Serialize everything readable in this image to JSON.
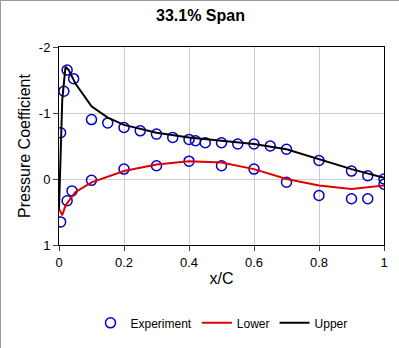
{
  "chart_data": {
    "type": "line",
    "title": "33.1% Span",
    "x_label": "x/C",
    "y_label": "Pressure Coefficient",
    "xlim": [
      0,
      1
    ],
    "xticks": [
      0,
      0.2,
      0.4,
      0.6,
      0.8,
      1
    ],
    "ylim": [
      1,
      -2
    ],
    "yticks": [
      -2,
      -1,
      0,
      1
    ],
    "grid": true,
    "legend": "bottom",
    "series": [
      {
        "name": "Experiment",
        "type": "scatter",
        "marker": "circle-open",
        "color": "#0000cc",
        "x": [
          0.005,
          0.005,
          0.015,
          0.025,
          0.045,
          0.1,
          0.15,
          0.2,
          0.25,
          0.3,
          0.35,
          0.4,
          0.42,
          0.45,
          0.5,
          0.55,
          0.6,
          0.65,
          0.7,
          0.8,
          0.9,
          0.95,
          1.0,
          0.025,
          0.04,
          0.1,
          0.2,
          0.3,
          0.4,
          0.5,
          0.6,
          0.7,
          0.8,
          0.9,
          0.95,
          1.0
        ],
        "values": [
          -0.7,
          0.65,
          -1.33,
          -1.65,
          -1.52,
          -0.9,
          -0.85,
          -0.78,
          -0.73,
          -0.68,
          -0.63,
          -0.6,
          -0.58,
          -0.55,
          -0.55,
          -0.53,
          -0.53,
          -0.5,
          -0.45,
          -0.28,
          -0.12,
          -0.05,
          0.0,
          0.33,
          0.18,
          0.02,
          -0.15,
          -0.2,
          -0.27,
          -0.2,
          -0.15,
          0.05,
          0.25,
          0.3,
          0.3,
          0.08
        ]
      },
      {
        "name": "Lower",
        "type": "line",
        "line_style": "solid",
        "color": "#dd0000",
        "x": [
          0,
          0.01,
          0.02,
          0.05,
          0.1,
          0.2,
          0.3,
          0.4,
          0.5,
          0.6,
          0.7,
          0.8,
          0.9,
          1.0
        ],
        "values": [
          0.45,
          0.55,
          0.4,
          0.2,
          0.05,
          -0.12,
          -0.22,
          -0.27,
          -0.25,
          -0.15,
          0.0,
          0.1,
          0.15,
          0.1
        ]
      },
      {
        "name": "Upper",
        "type": "line",
        "line_style": "solid",
        "color": "#000000",
        "x": [
          0,
          0.005,
          0.01,
          0.02,
          0.03,
          0.05,
          0.1,
          0.15,
          0.2,
          0.3,
          0.4,
          0.5,
          0.6,
          0.7,
          0.8,
          0.9,
          1.0
        ],
        "values": [
          0.45,
          -0.3,
          -1.2,
          -1.7,
          -1.65,
          -1.45,
          -1.1,
          -0.93,
          -0.82,
          -0.7,
          -0.63,
          -0.58,
          -0.53,
          -0.45,
          -0.3,
          -0.15,
          -0.02
        ]
      }
    ]
  }
}
